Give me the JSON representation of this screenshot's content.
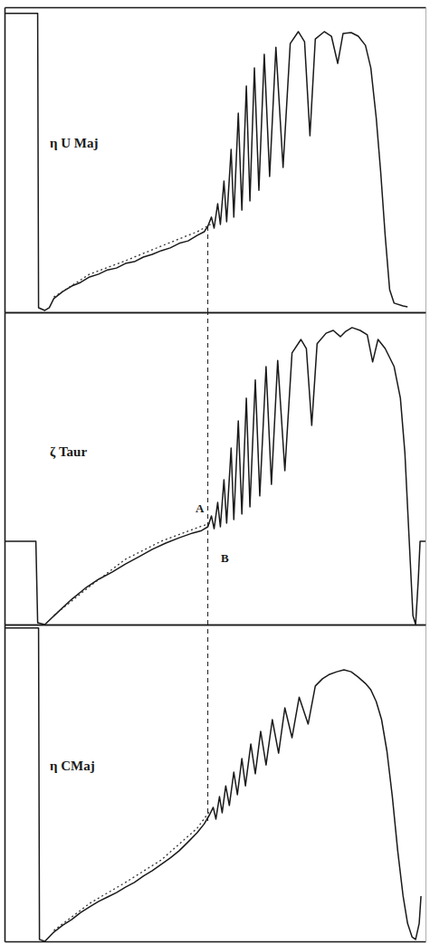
{
  "chart_data": [
    {
      "type": "line",
      "title": "η U Maj",
      "xlim": [
        0,
        470
      ],
      "ylim": [
        0,
        100
      ],
      "xticks": [],
      "yticks": [],
      "tick_labels": false,
      "grid": false,
      "series": [
        {
          "color": "#1a1a1a",
          "line_style": "solid",
          "x": [
            0,
            37,
            38,
            45,
            50,
            55,
            65,
            75,
            85,
            95,
            105,
            115,
            125,
            135,
            145,
            155,
            165,
            175,
            185,
            195,
            205,
            215,
            223,
            227,
            231,
            234,
            238,
            241,
            245,
            248,
            253,
            256,
            261,
            265,
            270,
            274,
            279,
            284,
            290,
            296,
            303,
            311,
            319,
            328,
            335,
            341,
            347,
            357,
            365,
            372,
            378,
            387,
            395,
            403,
            409,
            415,
            420,
            425,
            430,
            435,
            445,
            450
          ],
          "values": [
            98,
            98,
            1.5,
            0.6,
            1.5,
            4.5,
            6.8,
            8.6,
            9.8,
            11.6,
            12.5,
            13.9,
            14.5,
            16,
            16.6,
            18.1,
            19,
            20.2,
            21.1,
            22.6,
            23.4,
            25.2,
            26.4,
            28.2,
            31.2,
            27.6,
            35.6,
            28.8,
            43,
            29.7,
            53.4,
            31.2,
            65.3,
            33.5,
            74.2,
            36.5,
            80.1,
            40,
            84.6,
            44.5,
            86.9,
            47.5,
            88.1,
            92,
            88.7,
            57.9,
            89.6,
            92,
            90.5,
            81.6,
            91.4,
            91.7,
            90.5,
            87.5,
            80.1,
            63.8,
            46,
            25.2,
            7.4,
            3,
            2.1,
            1.8
          ]
        },
        {
          "color": "#333333",
          "line_style": "dotted",
          "x": [
            55,
            95,
            135,
            175,
            215,
            230
          ],
          "values": [
            5,
            12.5,
            16.9,
            21.7,
            26.4,
            28.8
          ]
        }
      ],
      "marker_line": {
        "x": 227,
        "y_from": 0,
        "y_to": 28.2
      }
    },
    {
      "type": "line",
      "title": "ζ Taur",
      "xlim": [
        0,
        470
      ],
      "ylim": [
        0,
        100
      ],
      "xticks": [],
      "yticks": [],
      "tick_labels": false,
      "grid": false,
      "series": [
        {
          "color": "#1a1a1a",
          "line_style": "solid",
          "x": [
            0,
            35,
            37,
            45,
            50,
            60,
            75,
            90,
            105,
            120,
            135,
            150,
            165,
            180,
            195,
            210,
            220,
            227,
            231,
            234,
            238,
            241,
            245,
            248,
            253,
            256,
            261,
            265,
            270,
            274,
            280,
            285,
            292,
            298,
            305,
            313,
            321,
            331,
            337,
            343,
            349,
            359,
            367,
            375,
            381,
            388,
            397,
            405,
            411,
            417,
            425,
            435,
            442,
            447,
            452,
            456,
            459,
            462,
            464,
            470
          ],
          "values": [
            26.7,
            26.7,
            0.6,
            0,
            1.4,
            4.1,
            8.1,
            11.6,
            14.5,
            16.8,
            19.4,
            21.7,
            24.1,
            26.1,
            27.8,
            29.3,
            30.1,
            31.3,
            34.8,
            30.7,
            39.1,
            31.3,
            46.4,
            32.5,
            56.5,
            33.6,
            65.2,
            35.4,
            72.5,
            37.7,
            78.3,
            41.2,
            82.6,
            44.9,
            84.6,
            49.3,
            87,
            91.3,
            88.4,
            63.8,
            89.9,
            93.3,
            94.2,
            92.2,
            93.9,
            95.1,
            94.2,
            92.8,
            84.1,
            91.3,
            88.4,
            82.6,
            72.5,
            55.1,
            26.1,
            2.9,
            0,
            14.5,
            26.7,
            26.7
          ]
        },
        {
          "color": "#333333",
          "line_style": "dotted",
          "x": [
            55,
            95,
            135,
            175,
            215,
            230
          ],
          "values": [
            2.9,
            12.2,
            20.9,
            26.7,
            31,
            32.5
          ]
        }
      ],
      "marker_line": {
        "x": 227,
        "y_from": 0,
        "y_to": 100
      },
      "annotations": [
        {
          "text": "A",
          "x": 218,
          "y": 36
        },
        {
          "text": "B",
          "x": 246,
          "y": 20
        }
      ]
    },
    {
      "type": "line",
      "title": "η CMaj",
      "xlim": [
        0,
        470
      ],
      "ylim": [
        0,
        100
      ],
      "xticks": [],
      "yticks": [],
      "tick_labels": false,
      "grid": false,
      "series": [
        {
          "color": "#1a1a1a",
          "line_style": "solid",
          "x": [
            0,
            38,
            39,
            45,
            55,
            65,
            75,
            85,
            95,
            105,
            115,
            125,
            135,
            145,
            155,
            165,
            175,
            185,
            195,
            205,
            215,
            223,
            229,
            233,
            236,
            240,
            243,
            247,
            251,
            256,
            260,
            265,
            269,
            275,
            280,
            286,
            292,
            299,
            306,
            313,
            321,
            329,
            339,
            347,
            355,
            363,
            371,
            379,
            387,
            395,
            403,
            409,
            415,
            421,
            427,
            433,
            439,
            445,
            450,
            455,
            459,
            463,
            465
          ],
          "values": [
            98.9,
            98.9,
            0.6,
            0,
            2.9,
            5.1,
            6.9,
            9.1,
            10.9,
            12.6,
            14,
            15.4,
            17.1,
            18.6,
            20.6,
            22.3,
            24.3,
            26.3,
            28.6,
            31.4,
            34.3,
            37.1,
            40,
            42.3,
            38.6,
            45.7,
            40.6,
            49.1,
            42.9,
            53.4,
            46.3,
            57.7,
            49.1,
            62.3,
            52.9,
            66.3,
            55.7,
            70,
            59.4,
            73.7,
            64.3,
            77.1,
            68.6,
            80.6,
            82.9,
            84.3,
            85.1,
            85.7,
            85.1,
            83.4,
            81.4,
            79.4,
            75.7,
            70,
            60,
            45.7,
            28.6,
            14.3,
            5.7,
            1.4,
            0.6,
            5.7,
            14.3
          ]
        },
        {
          "color": "#333333",
          "line_style": "dotted",
          "x": [
            55,
            95,
            135,
            175,
            215,
            230
          ],
          "values": [
            3.4,
            12,
            18.6,
            25.7,
            35.7,
            41.4
          ]
        }
      ],
      "marker_line": {
        "x": 227,
        "y_from": 38,
        "y_to": 100
      }
    }
  ]
}
